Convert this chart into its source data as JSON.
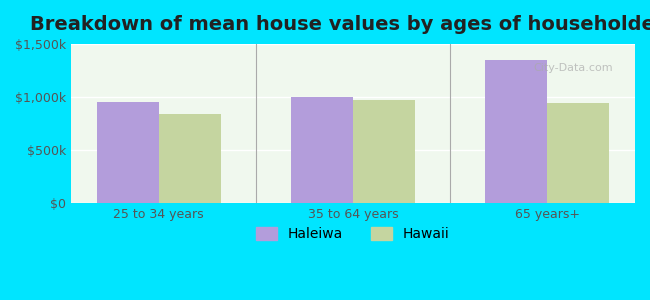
{
  "title": "Breakdown of mean house values by ages of householders",
  "categories": [
    "25 to 34 years",
    "35 to 64 years",
    "65 years+"
  ],
  "haleiwa_values": [
    950000,
    1000000,
    1350000
  ],
  "hawaii_values": [
    840000,
    975000,
    940000
  ],
  "haleiwa_color": "#b39ddb",
  "hawaii_color": "#c5d5a0",
  "background_outer": "#00e5ff",
  "background_inner": "#f0f8ee",
  "ylim": [
    0,
    1500000
  ],
  "yticks": [
    0,
    500000,
    1000000,
    1500000
  ],
  "ytick_labels": [
    "$0",
    "$500k",
    "$1,000k",
    "$1,500k"
  ],
  "bar_width": 0.32,
  "legend_labels": [
    "Haleiwa",
    "Hawaii"
  ],
  "title_fontsize": 14,
  "tick_fontsize": 9,
  "legend_fontsize": 10
}
